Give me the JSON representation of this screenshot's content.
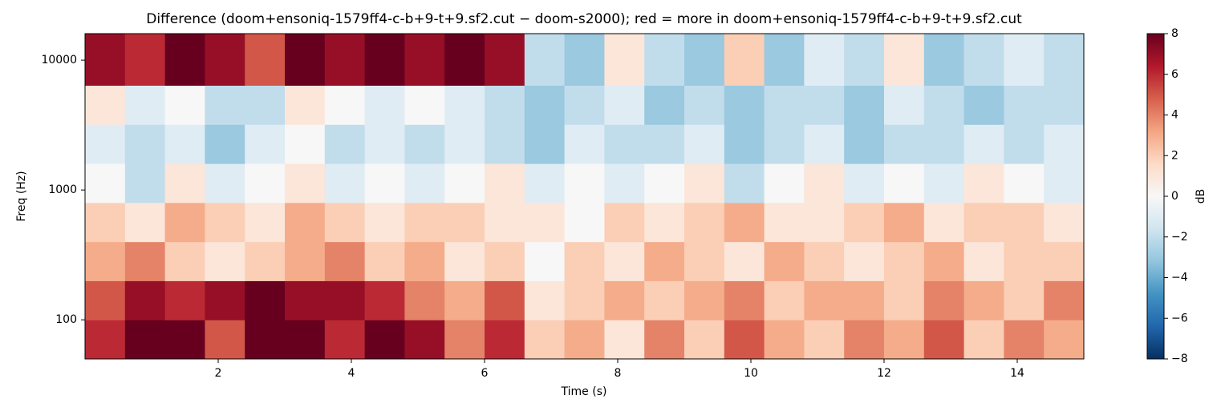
{
  "chart_data": {
    "type": "heatmap",
    "title": "Difference (doom+ensoniq-1579ff4-c-b+9-t+9.sf2.cut − doom-s2000); red = more in doom+ensoniq-1579ff4-c-b+9-t+9.sf2.cut",
    "xlabel": "Time (s)",
    "ylabel": "Freq (Hz)",
    "colorbar_label": "dB",
    "xlim": [
      0,
      15
    ],
    "xticks": [
      2,
      4,
      6,
      8,
      10,
      12,
      14
    ],
    "ylim": [
      50,
      16000
    ],
    "yscale": "log",
    "yticks": [
      100,
      1000,
      10000
    ],
    "clim": [
      -8,
      8
    ],
    "cticks": [
      {
        "value": -8,
        "label": "−8"
      },
      {
        "value": -6,
        "label": "−6"
      },
      {
        "value": -4,
        "label": "−4"
      },
      {
        "value": -2,
        "label": "−2"
      },
      0,
      2,
      4,
      6,
      8
    ],
    "colormap": [
      "#053061",
      "#2166ac",
      "#4393c3",
      "#92c5de",
      "#d1e5f0",
      "#f7f7f7",
      "#fddbc7",
      "#f4a582",
      "#d6604d",
      "#b2182b",
      "#67001f"
    ],
    "xbins": [
      0,
      0.6,
      1.2,
      1.8,
      2.4,
      3,
      3.6,
      4.2,
      4.8,
      5.4,
      6,
      6.6,
      7.2,
      7.8,
      8.4,
      9,
      9.6,
      10.2,
      10.8,
      11.4,
      12,
      12.6,
      13.2,
      13.8,
      14.4,
      15
    ],
    "ybins": [
      50,
      100,
      200,
      400,
      800,
      1600,
      3200,
      6400,
      16000
    ],
    "z": [
      [
        6,
        8,
        8,
        5,
        8,
        8,
        6,
        8,
        7,
        4,
        6,
        2,
        3,
        1,
        4,
        2,
        5,
        3,
        2,
        4,
        3,
        5,
        2,
        4,
        3
      ],
      [
        5,
        7,
        6,
        7,
        8,
        7,
        7,
        6,
        4,
        3,
        5,
        1,
        2,
        3,
        2,
        3,
        4,
        2,
        3,
        3,
        2,
        4,
        3,
        2,
        4
      ],
      [
        3,
        4,
        2,
        1,
        2,
        3,
        4,
        2,
        3,
        1,
        2,
        0,
        2,
        1,
        3,
        2,
        1,
        3,
        2,
        1,
        2,
        3,
        1,
        2,
        2
      ],
      [
        2,
        1,
        3,
        2,
        1,
        3,
        2,
        1,
        2,
        2,
        1,
        1,
        0,
        2,
        1,
        2,
        3,
        1,
        1,
        2,
        3,
        1,
        2,
        2,
        1
      ],
      [
        0,
        -2,
        1,
        -1,
        0,
        1,
        -1,
        0,
        -1,
        0,
        1,
        -1,
        0,
        -1,
        0,
        1,
        -2,
        0,
        1,
        -1,
        0,
        -1,
        1,
        0,
        -1
      ],
      [
        -1,
        -2,
        -1,
        -3,
        -1,
        0,
        -2,
        -1,
        -2,
        -1,
        -2,
        -3,
        -1,
        -2,
        -2,
        -1,
        -3,
        -2,
        -1,
        -3,
        -2,
        -2,
        -1,
        -2,
        -1
      ],
      [
        1,
        -1,
        0,
        -2,
        -2,
        1,
        0,
        -1,
        0,
        -1,
        -2,
        -3,
        -2,
        -1,
        -3,
        -2,
        -3,
        -2,
        -2,
        -3,
        -1,
        -2,
        -3,
        -2,
        -2
      ],
      [
        7,
        6,
        8,
        7,
        5,
        8,
        7,
        8,
        7,
        8,
        7,
        -2,
        -3,
        1,
        -2,
        -3,
        2,
        -3,
        -1,
        -2,
        1,
        -3,
        -2,
        -1,
        -2
      ]
    ]
  }
}
